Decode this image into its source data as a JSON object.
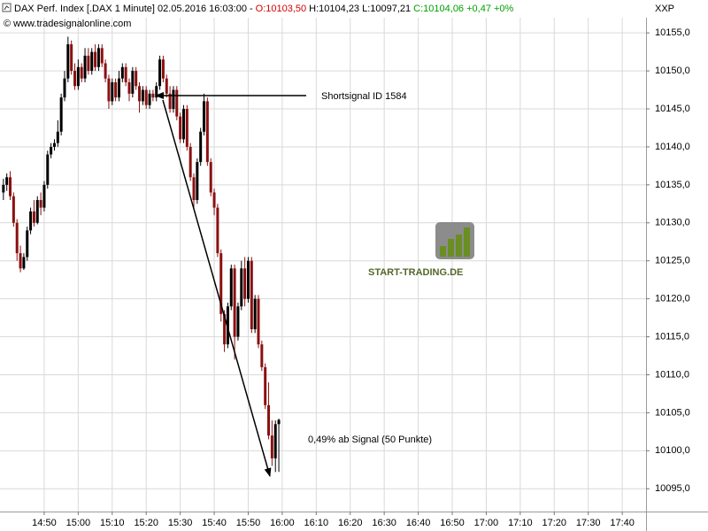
{
  "chart_data": {
    "type": "candlestick",
    "title_segments": [
      {
        "text": "DAX Perf. Index [.DAX  1 Minute] 02.05.2016 16:03:00 -",
        "color": "#000000"
      },
      {
        "text": "O:10103,50",
        "color": "#d40000"
      },
      {
        "text": "H:10104,23 L:10097,21",
        "color": "#000000"
      },
      {
        "text": "C:10104,06 +0,47 +0%",
        "color": "#00a000"
      }
    ],
    "source": "© www.tradesignalonline.com",
    "axis_label": "XXP",
    "watermark": "START-TRADING.DE",
    "annotations": [
      {
        "text": "Shortsignal ID 1584",
        "color": "#1c1cd0"
      },
      {
        "text": "0,49% ab Signal (50 Punkte)",
        "color": "#1c1cd0"
      }
    ],
    "up_color": "#000000",
    "down_color": "#8b1010",
    "grid": true,
    "x": [
      "14:38",
      "14:39",
      "14:40",
      "14:41",
      "14:42",
      "14:43",
      "14:44",
      "14:45",
      "14:46",
      "14:47",
      "14:48",
      "14:49",
      "14:50",
      "14:51",
      "14:52",
      "14:53",
      "14:54",
      "14:55",
      "14:56",
      "14:57",
      "14:58",
      "14:59",
      "15:00",
      "15:01",
      "15:02",
      "15:03",
      "15:04",
      "15:05",
      "15:06",
      "15:07",
      "15:08",
      "15:09",
      "15:10",
      "15:11",
      "15:12",
      "15:13",
      "15:14",
      "15:15",
      "15:16",
      "15:17",
      "15:18",
      "15:19",
      "15:20",
      "15:21",
      "15:22",
      "15:23",
      "15:24",
      "15:25",
      "15:26",
      "15:27",
      "15:28",
      "15:29",
      "15:30",
      "15:31",
      "15:32",
      "15:33",
      "15:34",
      "15:35",
      "15:36",
      "15:37",
      "15:38",
      "15:39",
      "15:40",
      "15:41",
      "15:42",
      "15:43",
      "15:44",
      "15:45",
      "15:46",
      "15:47",
      "15:48",
      "15:49",
      "15:50",
      "15:51",
      "15:52",
      "15:53",
      "15:54",
      "15:55",
      "15:56",
      "15:57",
      "15:58",
      "15:59"
    ],
    "open": [
      10134,
      10135,
      10136,
      10133.5,
      10130,
      10126,
      10124,
      10125.5,
      10129,
      10131.5,
      10130,
      10133,
      10132,
      10135,
      10139,
      10140,
      10140.5,
      10142,
      10146.5,
      10149,
      10153.5,
      10150,
      10148,
      10150.5,
      10149,
      10152,
      10150,
      10152.5,
      10150.5,
      10153,
      10151,
      10149,
      10146,
      10148.5,
      10146.5,
      10149,
      10150.5,
      10148.5,
      10147,
      10150,
      10148,
      10146,
      10147.5,
      10145.5,
      10147,
      10146.5,
      10148,
      10151.5,
      10149,
      10147,
      10145,
      10147.5,
      10144,
      10141,
      10145,
      10140,
      10136,
      10133,
      10138,
      10142,
      10146,
      10138,
      10134,
      10132,
      10126,
      10118,
      10114,
      10119,
      10124,
      10115,
      10119,
      10124,
      10120,
      10125,
      10116,
      10120,
      10114,
      10111,
      10106,
      10102,
      10099,
      10103.5
    ],
    "high": [
      10135.8,
      10136.5,
      10136.8,
      10134,
      10130.5,
      10127,
      10126,
      10129.5,
      10132,
      10133,
      10133.5,
      10134,
      10135.5,
      10139.5,
      10140.5,
      10141,
      10143.5,
      10147,
      10150,
      10154.5,
      10154,
      10151,
      10151.5,
      10151,
      10153,
      10153,
      10153,
      10153.5,
      10153.5,
      10153.5,
      10151.5,
      10149.5,
      10149,
      10149,
      10150,
      10151,
      10151,
      10149,
      10150.5,
      10150.5,
      10148.5,
      10148,
      10148,
      10147.5,
      10147.5,
      10148.5,
      10152,
      10152,
      10149.5,
      10148,
      10148,
      10148,
      10144.5,
      10145.5,
      10145.5,
      10140.5,
      10136.5,
      10138.5,
      10142.5,
      10147,
      10146.5,
      10138.5,
      10134.5,
      10132.5,
      10126.5,
      10118.5,
      10119.5,
      10124.5,
      10124.5,
      10119.5,
      10125,
      10125.5,
      10125.5,
      10125.5,
      10120.5,
      10120.5,
      10114.5,
      10111.5,
      10109,
      10104,
      10104,
      10104.23
    ],
    "low": [
      10133,
      10134.2,
      10133,
      10129.5,
      10125,
      10123.5,
      10123.8,
      10125,
      10128.5,
      10129.5,
      10129.8,
      10131,
      10131.5,
      10134.5,
      10138.5,
      10139.5,
      10140,
      10141.5,
      10146,
      10148.5,
      10149.5,
      10147.5,
      10147.5,
      10148.5,
      10148.5,
      10149.5,
      10149.5,
      10150,
      10150,
      10150.5,
      10148.5,
      10145,
      10145.5,
      10146,
      10146,
      10148.5,
      10148,
      10146,
      10146.5,
      10147.5,
      10144.5,
      10145.5,
      10145,
      10145,
      10146,
      10146,
      10147.5,
      10148.5,
      10146.5,
      10144.5,
      10144.5,
      10143.5,
      10140.5,
      10140.5,
      10139.5,
      10135.5,
      10132,
      10132.5,
      10137.5,
      10141.5,
      10137.5,
      10133.5,
      10131,
      10125.5,
      10117,
      10113,
      10113.5,
      10118.5,
      10112,
      10114.5,
      10118.5,
      10119,
      10119.5,
      10115.5,
      10115.5,
      10113.5,
      10110.5,
      10105.5,
      10101.5,
      10098,
      10097.2,
      10097.21
    ],
    "close": [
      10135,
      10136,
      10133.5,
      10130,
      10126,
      10124,
      10125.5,
      10129,
      10131.5,
      10130,
      10133,
      10132,
      10135,
      10139,
      10140,
      10140.5,
      10142,
      10146.5,
      10149,
      10153.5,
      10150,
      10148,
      10150.5,
      10149,
      10152,
      10150,
      10152.5,
      10150.5,
      10153,
      10151,
      10149,
      10146,
      10148.5,
      10146.5,
      10149,
      10150.5,
      10148.5,
      10147,
      10150,
      10148,
      10146,
      10147.5,
      10145.5,
      10147,
      10146.5,
      10148,
      10151.5,
      10149,
      10147,
      10145,
      10147.5,
      10144,
      10141,
      10145,
      10140,
      10136,
      10133,
      10138,
      10142,
      10146,
      10138,
      10134,
      10132,
      10126,
      10118,
      10114,
      10119,
      10124,
      10115,
      10119,
      10124,
      10120,
      10125,
      10116,
      10120,
      10114,
      10111,
      10106,
      10102,
      10099,
      10103.5,
      10104.06
    ],
    "xlim": [
      "14:37",
      "17:47"
    ],
    "xticks": [
      "14:50",
      "15:00",
      "15:10",
      "15:20",
      "15:30",
      "15:40",
      "15:50",
      "16:00",
      "16:10",
      "16:20",
      "16:30",
      "16:40",
      "16:50",
      "17:00",
      "17:10",
      "17:20",
      "17:30",
      "17:40"
    ],
    "ylim": [
      10092,
      10157
    ],
    "yticks": [
      {
        "value": 10095,
        "label": "10095,0"
      },
      {
        "value": 10100,
        "label": "10100,0"
      },
      {
        "value": 10105,
        "label": "10105,0"
      },
      {
        "value": 10110,
        "label": "10110,0"
      },
      {
        "value": 10115,
        "label": "10115,0"
      },
      {
        "value": 10120,
        "label": "10120,0"
      },
      {
        "value": 10125,
        "label": "10125,0"
      },
      {
        "value": 10130,
        "label": "10130,0"
      },
      {
        "value": 10135,
        "label": "10135,0"
      },
      {
        "value": 10140,
        "label": "10140,0"
      },
      {
        "value": 10145,
        "label": "10145,0"
      },
      {
        "value": 10150,
        "label": "10150,0"
      },
      {
        "value": 10155,
        "label": "10155,0"
      }
    ]
  }
}
